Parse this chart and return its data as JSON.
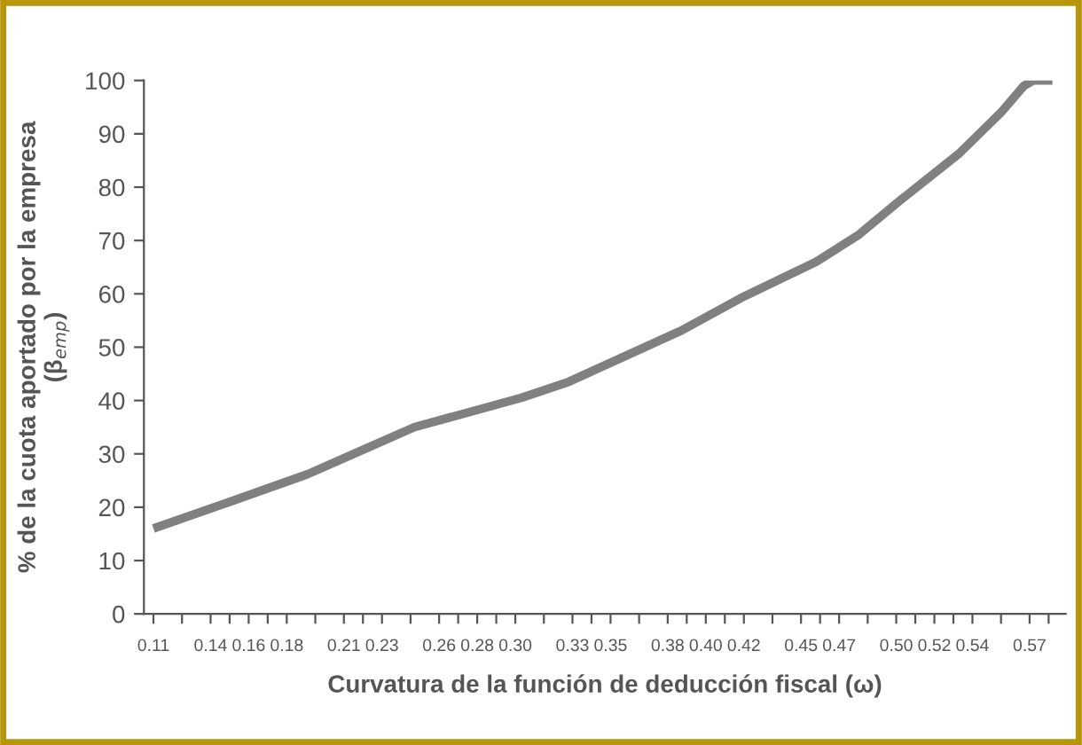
{
  "chart_data": {
    "type": "line",
    "xlabel": "Curvatura de la función de deducción fiscal (ω)",
    "ylabel": "% de la cuota aportado por la empresa\n(β$_{emp}$)",
    "series": [
      {
        "color": "#808080",
        "x": [
          0.11,
          0.15,
          0.191,
          0.247,
          0.303,
          0.328,
          0.3865,
          0.42,
          0.458,
          0.48,
          0.502,
          0.533,
          0.555,
          0.567,
          0.572,
          0.582
        ],
        "values": [
          16,
          21,
          26.2,
          35,
          40.5,
          43.5,
          53,
          59.5,
          66,
          71,
          77.5,
          86.3,
          94,
          99,
          100,
          100
        ]
      }
    ],
    "xlim": [
      0.105,
      0.589
    ],
    "xticks": [
      {
        "value": 0.11,
        "label": "0.11"
      },
      {
        "value": 0.125,
        "label": null
      },
      {
        "value": 0.14,
        "label": "0.14"
      },
      {
        "value": 0.15,
        "label": null
      },
      {
        "value": 0.16,
        "label": "0.16"
      },
      {
        "value": 0.17,
        "label": null
      },
      {
        "value": 0.18,
        "label": "0.18"
      },
      {
        "value": 0.195,
        "label": null
      },
      {
        "value": 0.21,
        "label": "0.21"
      },
      {
        "value": 0.22,
        "label": null
      },
      {
        "value": 0.23,
        "label": "0.23"
      },
      {
        "value": 0.245,
        "label": null
      },
      {
        "value": 0.26,
        "label": "0.26"
      },
      {
        "value": 0.27,
        "label": null
      },
      {
        "value": 0.28,
        "label": "0.28"
      },
      {
        "value": 0.29,
        "label": null
      },
      {
        "value": 0.3,
        "label": "0.30"
      },
      {
        "value": 0.315,
        "label": null
      },
      {
        "value": 0.33,
        "label": "0.33"
      },
      {
        "value": 0.34,
        "label": null
      },
      {
        "value": 0.35,
        "label": "0.35"
      },
      {
        "value": 0.365,
        "label": null
      },
      {
        "value": 0.38,
        "label": "0.38"
      },
      {
        "value": 0.39,
        "label": null
      },
      {
        "value": 0.4,
        "label": "0.40"
      },
      {
        "value": 0.41,
        "label": null
      },
      {
        "value": 0.42,
        "label": "0.42"
      },
      {
        "value": 0.435,
        "label": null
      },
      {
        "value": 0.45,
        "label": "0.45"
      },
      {
        "value": 0.46,
        "label": null
      },
      {
        "value": 0.47,
        "label": "0.47"
      },
      {
        "value": 0.485,
        "label": null
      },
      {
        "value": 0.5,
        "label": "0.50"
      },
      {
        "value": 0.51,
        "label": null
      },
      {
        "value": 0.52,
        "label": "0.52"
      },
      {
        "value": 0.53,
        "label": null
      },
      {
        "value": 0.54,
        "label": "0.54"
      },
      {
        "value": 0.555,
        "label": null
      },
      {
        "value": 0.57,
        "label": "0.57"
      },
      {
        "value": 0.58,
        "label": null
      }
    ],
    "ylim": [
      0,
      100
    ],
    "yticks": [
      0,
      10,
      20,
      30,
      40,
      50,
      60,
      70,
      80,
      90,
      100
    ],
    "grid": false,
    "marker": "none",
    "line_style": "solid"
  }
}
